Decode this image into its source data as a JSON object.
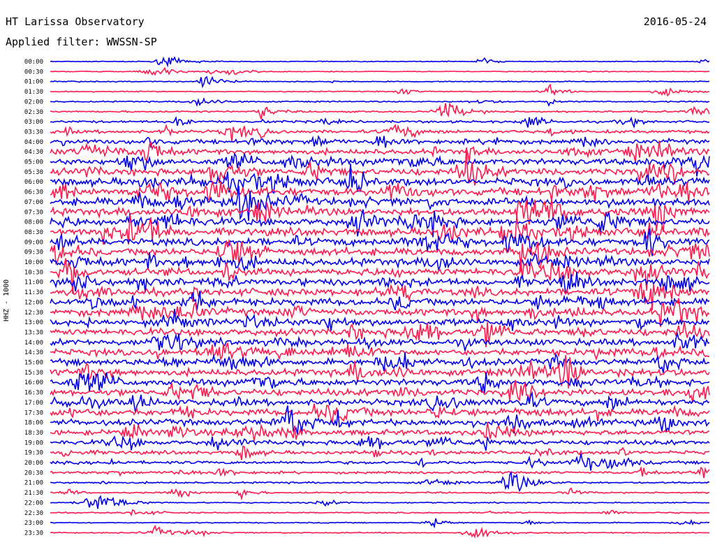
{
  "header": {
    "title": "HT Larissa Observatory",
    "date": "2016-05-24",
    "filter": "Applied filter: WWSSN-SP"
  },
  "chart_data": {
    "type": "line",
    "title": "HT Larissa Observatory",
    "subtitle": "Applied filter: WWSSN-SP",
    "ylabel": "HHZ - 1000",
    "colors": {
      "odd": "#0000ee",
      "even": "#ff1a4d"
    },
    "rows": [
      {
        "label": "00:00",
        "noise": 0.6
      },
      {
        "label": "00:30",
        "noise": 0.6
      },
      {
        "label": "01:00",
        "noise": 0.7
      },
      {
        "label": "01:30",
        "noise": 0.7
      },
      {
        "label": "02:00",
        "noise": 0.9
      },
      {
        "label": "02:30",
        "noise": 1.2
      },
      {
        "label": "03:00",
        "noise": 1.6
      },
      {
        "label": "03:30",
        "noise": 2.2
      },
      {
        "label": "04:00",
        "noise": 3.0
      },
      {
        "label": "04:30",
        "noise": 3.6
      },
      {
        "label": "05:00",
        "noise": 4.2
      },
      {
        "label": "05:30",
        "noise": 4.6
      },
      {
        "label": "06:00",
        "noise": 5.0
      },
      {
        "label": "06:30",
        "noise": 5.2
      },
      {
        "label": "07:00",
        "noise": 5.2
      },
      {
        "label": "07:30",
        "noise": 5.0
      },
      {
        "label": "08:00",
        "noise": 5.0
      },
      {
        "label": "08:30",
        "noise": 5.0
      },
      {
        "label": "09:00",
        "noise": 5.0
      },
      {
        "label": "09:30",
        "noise": 5.0
      },
      {
        "label": "10:00",
        "noise": 5.0
      },
      {
        "label": "10:30",
        "noise": 5.0
      },
      {
        "label": "11:00",
        "noise": 4.8
      },
      {
        "label": "11:30",
        "noise": 4.8
      },
      {
        "label": "12:00",
        "noise": 4.8
      },
      {
        "label": "12:30",
        "noise": 4.8
      },
      {
        "label": "13:00",
        "noise": 4.6
      },
      {
        "label": "13:30",
        "noise": 4.6
      },
      {
        "label": "14:00",
        "noise": 4.4
      },
      {
        "label": "14:30",
        "noise": 4.2
      },
      {
        "label": "15:00",
        "noise": 4.2
      },
      {
        "label": "15:30",
        "noise": 4.4
      },
      {
        "label": "16:00",
        "noise": 4.4
      },
      {
        "label": "16:30",
        "noise": 4.4
      },
      {
        "label": "17:00",
        "noise": 4.2
      },
      {
        "label": "17:30",
        "noise": 4.4
      },
      {
        "label": "18:00",
        "noise": 4.2
      },
      {
        "label": "18:30",
        "noise": 3.6
      },
      {
        "label": "19:00",
        "noise": 3.0
      },
      {
        "label": "19:30",
        "noise": 2.4
      },
      {
        "label": "20:00",
        "noise": 2.0
      },
      {
        "label": "20:30",
        "noise": 1.6
      },
      {
        "label": "21:00",
        "noise": 1.2
      },
      {
        "label": "21:30",
        "noise": 1.0
      },
      {
        "label": "22:00",
        "noise": 0.8
      },
      {
        "label": "22:30",
        "noise": 0.8
      },
      {
        "label": "23:00",
        "noise": 0.7
      },
      {
        "label": "23:30",
        "noise": 0.7
      }
    ],
    "grid": false,
    "legend": "none"
  }
}
